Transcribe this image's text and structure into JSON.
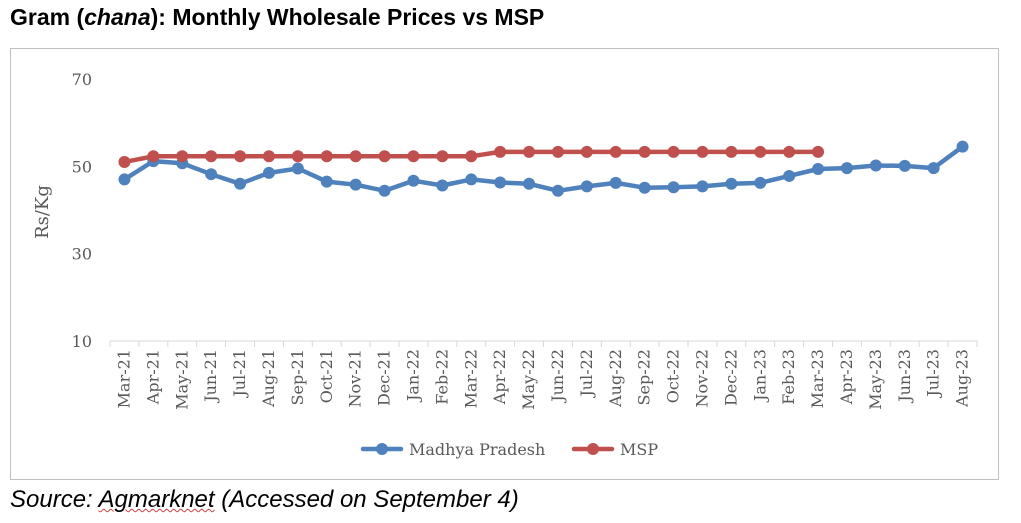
{
  "title": {
    "prefix": "Gram (",
    "italic": "chana",
    "suffix": "): Monthly Wholesale Prices vs MSP"
  },
  "source": {
    "prefix": "Source: ",
    "name": "Agmarknet",
    "suffix": " (Accessed on September 4)"
  },
  "chart_data": {
    "type": "line",
    "title": "Gram (chana): Monthly Wholesale Prices vs MSP",
    "xlabel": "",
    "ylabel": "Rs/Kg",
    "ylim": [
      10,
      70
    ],
    "yticks": [
      10,
      30,
      50,
      70
    ],
    "grid": false,
    "legend_position": "bottom",
    "categories": [
      "Mar-21",
      "Apr-21",
      "May-21",
      "Jun-21",
      "Jul-21",
      "Aug-21",
      "Sep-21",
      "Oct-21",
      "Nov-21",
      "Dec-21",
      "Jan-22",
      "Feb-22",
      "Mar-22",
      "Apr-22",
      "May-22",
      "Jun-22",
      "Jul-22",
      "Aug-22",
      "Sep-22",
      "Oct-22",
      "Nov-22",
      "Dec-22",
      "Jan-23",
      "Feb-23",
      "Mar-23",
      "Apr-23",
      "May-23",
      "Jun-23",
      "Jul-23",
      "Aug-23"
    ],
    "series": [
      {
        "name": "Madhya Pradesh",
        "color": "#4f81bd",
        "values": [
          47.0,
          51.2,
          50.7,
          48.2,
          46.0,
          48.5,
          49.5,
          46.5,
          45.8,
          44.4,
          46.7,
          45.6,
          47.0,
          46.3,
          46.0,
          44.4,
          45.4,
          46.2,
          45.1,
          45.2,
          45.4,
          46.0,
          46.2,
          47.8,
          49.4,
          49.6,
          50.2,
          50.1,
          49.6,
          54.5
        ]
      },
      {
        "name": "MSP",
        "color": "#c0504d",
        "values": [
          51.0,
          52.3,
          52.3,
          52.3,
          52.3,
          52.3,
          52.3,
          52.3,
          52.3,
          52.3,
          52.3,
          52.3,
          52.3,
          53.3,
          53.3,
          53.3,
          53.3,
          53.3,
          53.3,
          53.3,
          53.3,
          53.3,
          53.3,
          53.3,
          53.3,
          null,
          null,
          null,
          null,
          null
        ]
      }
    ]
  }
}
